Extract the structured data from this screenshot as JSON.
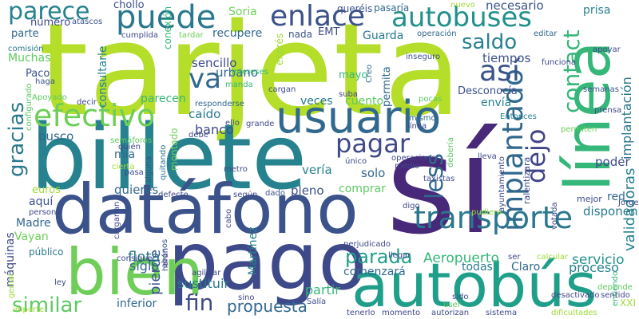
{
  "words": [
    {
      "text": "tarjeta",
      "color": "#b5de2b"
    },
    {
      "text": "sí",
      "color": "#482878"
    },
    {
      "text": "billete",
      "color": "#26828e"
    },
    {
      "text": "pago",
      "color": "#3e4989"
    },
    {
      "text": "datáfono",
      "color": "#3b528b"
    },
    {
      "text": "autobús",
      "color": "#1f9e89"
    },
    {
      "text": "línea",
      "color": "#35b779"
    },
    {
      "text": "usuario",
      "color": "#31688e"
    },
    {
      "text": "bien",
      "color": "#6ece58"
    },
    {
      "text": "transporte",
      "color": "#2a788e"
    },
    {
      "text": "autobuses",
      "color": "#21918c"
    },
    {
      "text": "puede",
      "color": "#2a788e"
    },
    {
      "text": "enlace",
      "color": "#3b528b"
    },
    {
      "text": "parece",
      "color": "#26828e"
    },
    {
      "text": "pagar",
      "color": "#3e4989"
    },
    {
      "text": "efectivo",
      "color": "#6ece58"
    },
    {
      "text": "implantado",
      "color": "#31688e"
    },
    {
      "text": "contact",
      "color": "#35b779"
    },
    {
      "text": "less",
      "color": "#31688e"
    },
    {
      "text": "dejo",
      "color": "#414487"
    },
    {
      "text": "gracias",
      "color": "#2a788e"
    },
    {
      "text": "así",
      "color": "#3b528b"
    },
    {
      "text": "saldo",
      "color": "#26828e"
    },
    {
      "text": "va",
      "color": "#31688e"
    },
    {
      "text": "similar",
      "color": "#5ec962"
    },
    {
      "text": "fin",
      "color": "#3e4989"
    },
    {
      "text": "parada",
      "color": "#1f9e89"
    },
    {
      "text": "propuesta",
      "color": "#31688e"
    },
    {
      "text": "implantación",
      "color": "#2a788e"
    },
    {
      "text": "validadoras",
      "color": "#26828e"
    },
    {
      "text": "pierde",
      "color": "#3b528b"
    },
    {
      "text": "Aeropuerto",
      "color": "#35b779"
    },
    {
      "text": "servicio",
      "color": "#21918c"
    },
    {
      "text": "proceso",
      "color": "#26828e"
    },
    {
      "text": "comenzará",
      "color": "#31688e"
    },
    {
      "text": "todas",
      "color": "#2a788e"
    },
    {
      "text": "Claro",
      "color": "#31688e"
    },
    {
      "text": "flota",
      "color": "#2a788e"
    },
    {
      "text": "siglo",
      "color": "#31688e"
    },
    {
      "text": "sustituir",
      "color": "#2a788e"
    },
    {
      "text": "partir",
      "color": "#35b779"
    },
    {
      "text": "inferior",
      "color": "#31688e"
    },
    {
      "text": "Martínez",
      "color": "#26828e"
    },
    {
      "text": "máquinas",
      "color": "#3e4989"
    },
    {
      "text": "Madre",
      "color": "#31688e"
    },
    {
      "text": "Vayan",
      "color": "#6ece58"
    },
    {
      "text": "público",
      "color": "#2a788e"
    },
    {
      "text": "aquí",
      "color": "#3b528b"
    },
    {
      "text": "euros",
      "color": "#a0da39"
    },
    {
      "text": "quieres",
      "color": "#31688e"
    },
    {
      "text": "pleno",
      "color": "#3b528b"
    },
    {
      "text": "comprar",
      "color": "#5ec962"
    },
    {
      "text": "disponen",
      "color": "#2a788e"
    },
    {
      "text": "red",
      "color": "#31688e"
    },
    {
      "text": "poder",
      "color": "#3e4989"
    },
    {
      "text": "solo",
      "color": "#31688e"
    },
    {
      "text": "vería",
      "color": "#26828e"
    },
    {
      "text": "banco",
      "color": "#3e4989"
    },
    {
      "text": "mía",
      "color": "#31688e"
    },
    {
      "text": "caído",
      "color": "#2a788e"
    },
    {
      "text": "busco",
      "color": "#31688e"
    },
    {
      "text": "consultarle",
      "color": "#26828e"
    },
    {
      "text": "sencillo",
      "color": "#3e4989"
    },
    {
      "text": "urbano",
      "color": "#31688e"
    },
    {
      "text": "parecen",
      "color": "#35b779"
    },
    {
      "text": "veces",
      "color": "#2a788e"
    },
    {
      "text": "cuento",
      "color": "#5ec962"
    },
    {
      "text": "envía",
      "color": "#26828e"
    },
    {
      "text": "Desconocía",
      "color": "#3b528b"
    },
    {
      "text": "permita",
      "color": "#31688e"
    },
    {
      "text": "mayo",
      "color": "#35b779"
    },
    {
      "text": "tiempos",
      "color": "#3b528b"
    },
    {
      "text": "Muchas",
      "color": "#5ec962"
    },
    {
      "text": "Paco",
      "color": "#3b528b"
    },
    {
      "text": "parte",
      "color": "#31688e"
    },
    {
      "text": "número",
      "color": "#3e4989"
    },
    {
      "text": "chollo",
      "color": "#3b528b"
    },
    {
      "text": "Soria",
      "color": "#6ece58"
    },
    {
      "text": "queréis",
      "color": "#3b528b"
    },
    {
      "text": "pasaría",
      "color": "#31688e"
    },
    {
      "text": "necesario",
      "color": "#3b528b"
    },
    {
      "text": "prisa",
      "color": "#26828e"
    },
    {
      "text": "recupere",
      "color": "#31688e"
    },
    {
      "text": "EMT",
      "color": "#3e4989"
    },
    {
      "text": "nada",
      "color": "#3b528b"
    },
    {
      "text": "Guarda",
      "color": "#2a788e"
    },
    {
      "text": "cumplida",
      "color": "#3e4989"
    },
    {
      "text": "tardar",
      "color": "#6ece58"
    },
    {
      "text": "conexión",
      "color": "#35b779"
    },
    {
      "text": "exprés",
      "color": "#a0da39"
    },
    {
      "text": "inseguro",
      "color": "#3b528b"
    },
    {
      "text": "Creo",
      "color": "#31688e"
    },
    {
      "text": "operación",
      "color": "#31688e"
    },
    {
      "text": "editar",
      "color": "#31688e"
    },
    {
      "text": "apoyar",
      "color": "#3e4989"
    },
    {
      "text": "funciona",
      "color": "#3e4989"
    },
    {
      "text": "semanas",
      "color": "#3b528b"
    },
    {
      "text": "prensa",
      "color": "#3e4989"
    },
    {
      "text": "Entonces",
      "color": "#26828e"
    },
    {
      "text": "mismo",
      "color": "#31688e"
    },
    {
      "text": "línea",
      "color": "#3e4989"
    },
    {
      "text": "permiten",
      "color": "#6ece58"
    },
    {
      "text": "atascos",
      "color": "#3b528b"
    },
    {
      "text": "comisión",
      "color": "#2a788e"
    },
    {
      "text": "haga",
      "color": "#3b528b"
    },
    {
      "text": "Apoyado",
      "color": "#5ec962"
    },
    {
      "text": "decir",
      "color": "#3e4989"
    },
    {
      "text": "configurado",
      "color": "#5ec962"
    },
    {
      "text": "semáforos",
      "color": "#5ec962"
    },
    {
      "text": "quién",
      "color": "#3e4989"
    },
    {
      "text": "pasa",
      "color": "#3e4989"
    },
    {
      "text": "cierta",
      "color": "#a0da39"
    },
    {
      "text": "alguna",
      "color": "#3b528b"
    },
    {
      "text": "quitando",
      "color": "#2a788e"
    },
    {
      "text": "montado",
      "color": "#6ece58"
    },
    {
      "text": "debe",
      "color": "#3e4989"
    },
    {
      "text": "manda",
      "color": "#35b779"
    },
    {
      "text": "intereses",
      "color": "#35b779"
    },
    {
      "text": "cargan",
      "color": "#3e4989"
    },
    {
      "text": "suba",
      "color": "#3e4989"
    },
    {
      "text": "pocas",
      "color": "#5ec962"
    },
    {
      "text": "responderse",
      "color": "#31688e"
    },
    {
      "text": "ello",
      "color": "#3e4989"
    },
    {
      "text": "grande",
      "color": "#3e4989"
    },
    {
      "text": "metro",
      "color": "#3e4989"
    },
    {
      "text": "defecto",
      "color": "#3e4989"
    },
    {
      "text": "según",
      "color": "#3e4989"
    },
    {
      "text": "dado",
      "color": "#3b528b"
    },
    {
      "text": "cabo",
      "color": "#3e4989"
    },
    {
      "text": "cargarían",
      "color": "#3e4989"
    },
    {
      "text": "persona",
      "color": "#3e4989"
    },
    {
      "text": "harán",
      "color": "#3e4989"
    },
    {
      "text": "consigue",
      "color": "#3e4989"
    },
    {
      "text": "abonos",
      "color": "#3e4989"
    },
    {
      "text": "agilizar",
      "color": "#3e4989"
    },
    {
      "text": "sino",
      "color": "#3e4989"
    },
    {
      "text": "ley",
      "color": "#3e4989"
    },
    {
      "text": "genial",
      "color": "#a0da39"
    },
    {
      "text": "importe",
      "color": "#a0da39"
    },
    {
      "text": "Salía",
      "color": "#3e4989"
    },
    {
      "text": "tenerlo",
      "color": "#3e4989"
    },
    {
      "text": "momento",
      "color": "#3e4989"
    },
    {
      "text": "autorizan",
      "color": "#3e4989"
    },
    {
      "text": "sistema",
      "color": "#3e4989"
    },
    {
      "text": "dificultades",
      "color": "#a0da39"
    },
    {
      "text": "XXI",
      "color": "#a0da39"
    },
    {
      "text": "entiendo",
      "color": "#35b779"
    },
    {
      "text": "depende",
      "color": "#5ec962"
    },
    {
      "text": "sentido",
      "color": "#3e4989"
    },
    {
      "text": "desactivado",
      "color": "#3e4989"
    },
    {
      "text": "calcular",
      "color": "#a0da39"
    },
    {
      "text": "ser",
      "color": "#3e4989"
    },
    {
      "text": "user",
      "color": "#5ec962"
    },
    {
      "text": "sido",
      "color": "#3e4989"
    },
    {
      "text": "llegar",
      "color": "#3e4989"
    },
    {
      "text": "perjudicado",
      "color": "#3e4989"
    },
    {
      "text": "digo",
      "color": "#3e4989"
    },
    {
      "text": "pudiera",
      "color": "#a0da39"
    },
    {
      "text": "ayuntamiento",
      "color": "#3e4989"
    },
    {
      "text": "ralentizara",
      "color": "#3e4989"
    },
    {
      "text": "mejor",
      "color": "#3e4989"
    },
    {
      "text": "votada",
      "color": "#3e4989"
    },
    {
      "text": "Jorge",
      "color": "#3e4989"
    },
    {
      "text": "taxistas",
      "color": "#3e4989"
    },
    {
      "text": "debería",
      "color": "#5ec962"
    },
    {
      "text": "lleva",
      "color": "#3e4989"
    },
    {
      "text": "único",
      "color": "#3e4989"
    },
    {
      "text": "medio",
      "color": "#3e4989"
    },
    {
      "text": "operaciones",
      "color": "#3e4989"
    },
    {
      "text": "nuevo",
      "color": "#a0da39"
    }
  ]
}
